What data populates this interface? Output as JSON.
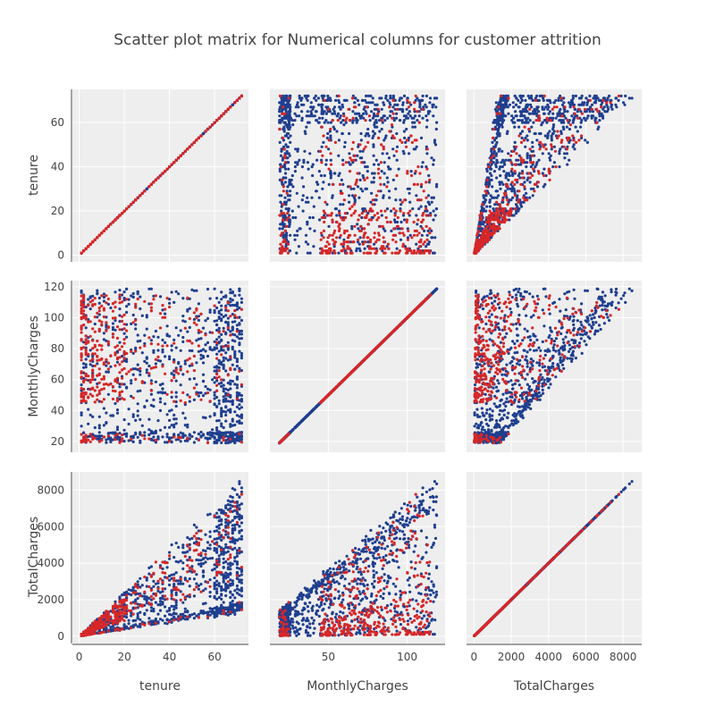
{
  "chart_data": {
    "type": "scatter",
    "title": "Scatter plot matrix for Numerical columns for customer attrition",
    "dimensions": [
      {
        "name": "tenure",
        "range": [
          -3,
          75
        ],
        "ticks": [
          0,
          20,
          40,
          60
        ],
        "tick_labels": [
          "0",
          "20",
          "40",
          "60"
        ]
      },
      {
        "name": "MonthlyCharges",
        "range": [
          13,
          124
        ],
        "ticks": [
          20,
          40,
          60,
          80,
          100,
          120
        ],
        "x_ticks": [
          50,
          100
        ],
        "tick_labels": [
          "20",
          "40",
          "60",
          "80",
          "100",
          "120"
        ],
        "x_tick_labels": [
          "50",
          "100"
        ]
      },
      {
        "name": "TotalCharges",
        "range": [
          -400,
          9000
        ],
        "ticks": [
          0,
          2000,
          4000,
          6000,
          8000
        ],
        "tick_labels": [
          "0",
          "2000",
          "4000",
          "6000",
          "8000"
        ]
      }
    ],
    "series": [
      {
        "color": "#1f3f8f"
      },
      {
        "color": "#d62728"
      }
    ],
    "grid": true,
    "legend": "none",
    "x_axis_labels": [
      "tenure",
      "MonthlyCharges",
      "TotalCharges"
    ],
    "y_axis_labels": [
      "tenure",
      "MonthlyCharges",
      "TotalCharges"
    ]
  }
}
